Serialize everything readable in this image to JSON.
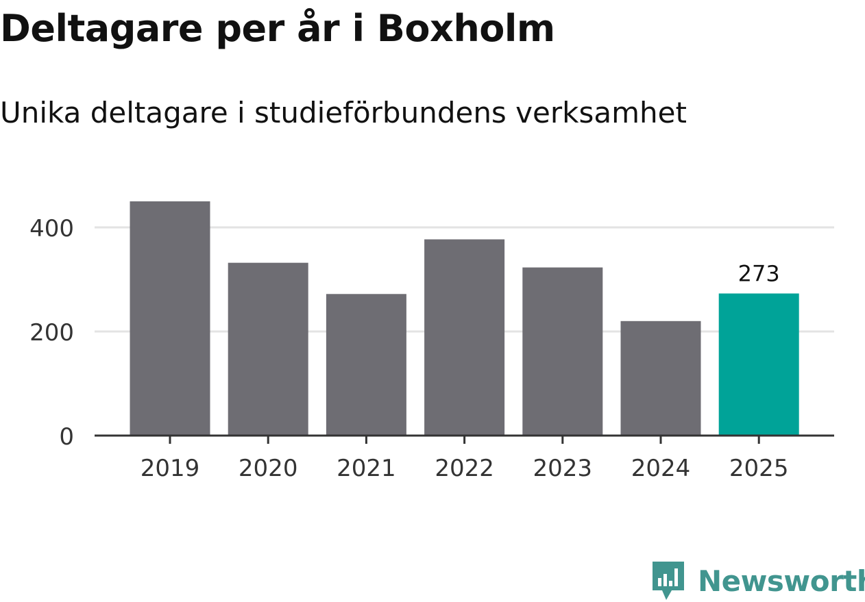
{
  "title": "Deltagare per år i Boxholm",
  "subtitle": "Unika deltagare i studieförbundens verksamhet",
  "logo": {
    "text": "Newsworthy",
    "icon": "newsworthy-logo-icon",
    "color": "#41958f"
  },
  "chart_data": {
    "type": "bar",
    "title": "Deltagare per år i Boxholm",
    "subtitle": "Unika deltagare i studieförbundens verksamhet",
    "categories": [
      "2019",
      "2020",
      "2021",
      "2022",
      "2023",
      "2024",
      "2025"
    ],
    "values": [
      450,
      332,
      272,
      377,
      323,
      220,
      273
    ],
    "highlight_index": 6,
    "data_labels": [
      {
        "index": 6,
        "text": "273"
      }
    ],
    "yticks": [
      0,
      200,
      400
    ],
    "ylim": [
      0,
      460
    ],
    "grid": true,
    "bar_color": "#6e6d73",
    "highlight_color": "#00a398",
    "grid_color": "#e3e3e3",
    "axis_color": "#333333"
  }
}
